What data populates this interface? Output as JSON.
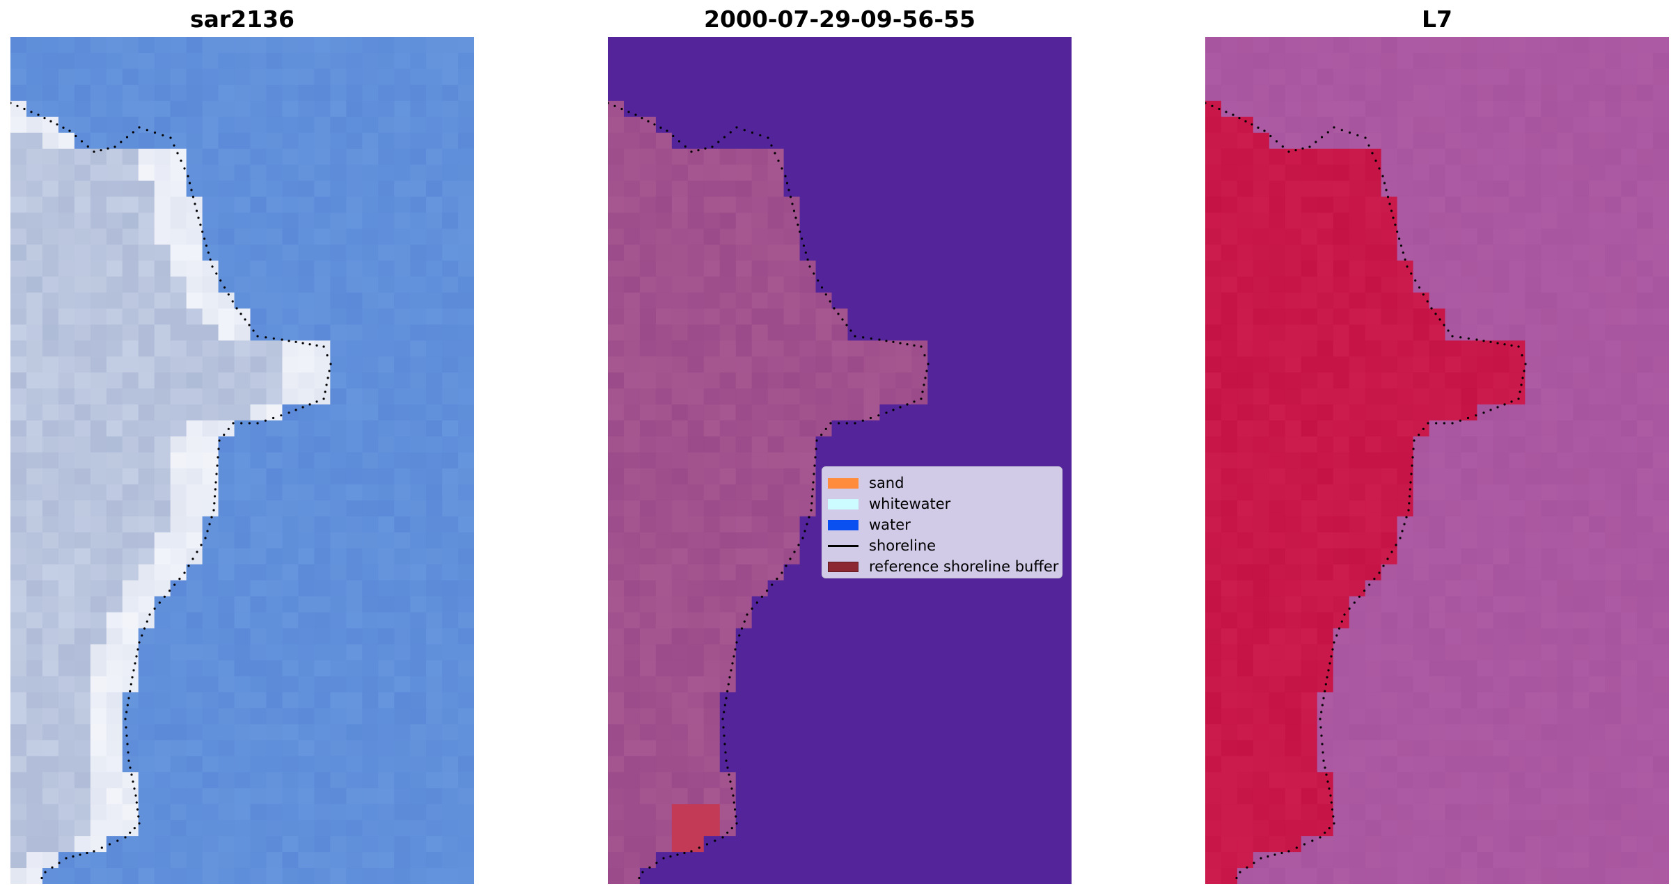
{
  "panels": [
    {
      "title": "sar2136",
      "style": "rgb"
    },
    {
      "title": "2000-07-29-09-56-55",
      "style": "classified"
    },
    {
      "title": "L7",
      "style": "index"
    }
  ],
  "legend": {
    "items": [
      {
        "label": "sand",
        "color": "#ff8c3c",
        "kind": "patch"
      },
      {
        "label": "whitewater",
        "color": "#ccfcff",
        "kind": "patch"
      },
      {
        "label": "water",
        "color": "#0a50f0",
        "kind": "patch"
      },
      {
        "label": "shoreline",
        "color": "#000000",
        "kind": "line"
      },
      {
        "label": "reference shoreline buffer",
        "color": "#8c2832",
        "kind": "patch"
      }
    ]
  },
  "colors": {
    "rgb_land": "#c4cee4",
    "rgb_surf": "#f2f4fa",
    "rgb_water": "#5c8ad8",
    "classified_water": "#54249b",
    "classified_land": "#a75790",
    "classified_buffer": "#c23a56",
    "index_land": "#c51345",
    "index_water": "#a8559f",
    "index_dark": "#6a0aa8"
  }
}
